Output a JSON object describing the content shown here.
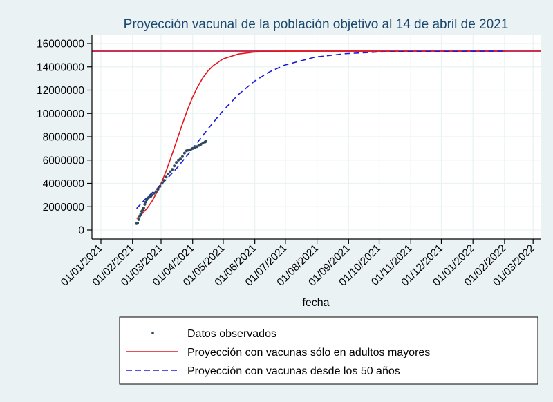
{
  "chart_data": {
    "type": "line",
    "title": "Proyección vacunal de la población objetivo al 14 de abril de 2021",
    "xlabel": "fecha",
    "ylabel": "",
    "x_unit": "days since 01/01/2021",
    "xlim": [
      0,
      424
    ],
    "ylim": [
      0,
      16000000
    ],
    "grid": true,
    "y_ticks": [
      0,
      2000000,
      4000000,
      6000000,
      8000000,
      10000000,
      12000000,
      14000000,
      16000000
    ],
    "y_tick_labels": [
      "0",
      "2000000",
      "4000000",
      "6000000",
      "8000000",
      "10000000",
      "12000000",
      "14000000",
      "16000000"
    ],
    "x_ticks": [
      0,
      31,
      59,
      90,
      120,
      151,
      181,
      212,
      243,
      273,
      304,
      334,
      365,
      396,
      424
    ],
    "x_tick_labels": [
      "01/01/2021",
      "01/02/2021",
      "01/03/2021",
      "01/04/2021",
      "01/05/2021",
      "01/06/2021",
      "01/07/2021",
      "01/08/2021",
      "01/09/2021",
      "01/10/2021",
      "01/11/2021",
      "01/12/2021",
      "01/01/2022",
      "01/02/2022",
      "01/03/2022"
    ],
    "reference_line": {
      "y": 15350000,
      "color": "#c0143c"
    },
    "legend_position": "bottom",
    "series": [
      {
        "name": "Datos observados",
        "kind": "scatter",
        "color": "#2d4a5c",
        "x": [
          35,
          36,
          37,
          38,
          39,
          40,
          41,
          42,
          43,
          44,
          45,
          46,
          47,
          48,
          49,
          50,
          52,
          54,
          56,
          58,
          60,
          62,
          64,
          66,
          68,
          70,
          72,
          74,
          76,
          78,
          80,
          82,
          84,
          86,
          88,
          90,
          92,
          94,
          96,
          98,
          100,
          102,
          103
        ],
        "y": [
          550000,
          600000,
          900000,
          1200000,
          1350000,
          1600000,
          1750000,
          1900000,
          2200000,
          2400000,
          2600000,
          2750000,
          2800000,
          2850000,
          2900000,
          3000000,
          3150000,
          3300000,
          3500000,
          3750000,
          4000000,
          4250000,
          4550000,
          4800000,
          5000000,
          5200000,
          5500000,
          5800000,
          6000000,
          6100000,
          6300000,
          6600000,
          6800000,
          6850000,
          6900000,
          7000000,
          7050000,
          7150000,
          7250000,
          7350000,
          7450000,
          7550000,
          7600000
        ]
      },
      {
        "name": "Proyección con vacunas sólo en adultos mayores",
        "kind": "line",
        "color": "#e8141c",
        "x": [
          35,
          40,
          45,
          50,
          55,
          60,
          65,
          70,
          75,
          80,
          85,
          90,
          95,
          100,
          105,
          110,
          120,
          135,
          150,
          180,
          210,
          300,
          396
        ],
        "y": [
          980000,
          1350000,
          1830000,
          2450000,
          3240000,
          4190000,
          5290000,
          6540000,
          7830000,
          9120000,
          10330000,
          11410000,
          12310000,
          13060000,
          13650000,
          14090000,
          14690000,
          15100000,
          15260000,
          15340000,
          15350000,
          15350000,
          15350000
        ]
      },
      {
        "name": "Proyección con vacunas desde los 50 años",
        "kind": "dashed-line",
        "color": "#1a1adc",
        "x": [
          35,
          45,
          55,
          65,
          75,
          85,
          95,
          105,
          120,
          135,
          150,
          165,
          180,
          210,
          240,
          270,
          300,
          396
        ],
        "y": [
          1850000,
          2800000,
          3550000,
          4410000,
          5370000,
          6430000,
          7550000,
          8670000,
          10250000,
          11630000,
          12730000,
          13550000,
          14140000,
          14830000,
          15130000,
          15260000,
          15310000,
          15350000
        ]
      }
    ]
  }
}
